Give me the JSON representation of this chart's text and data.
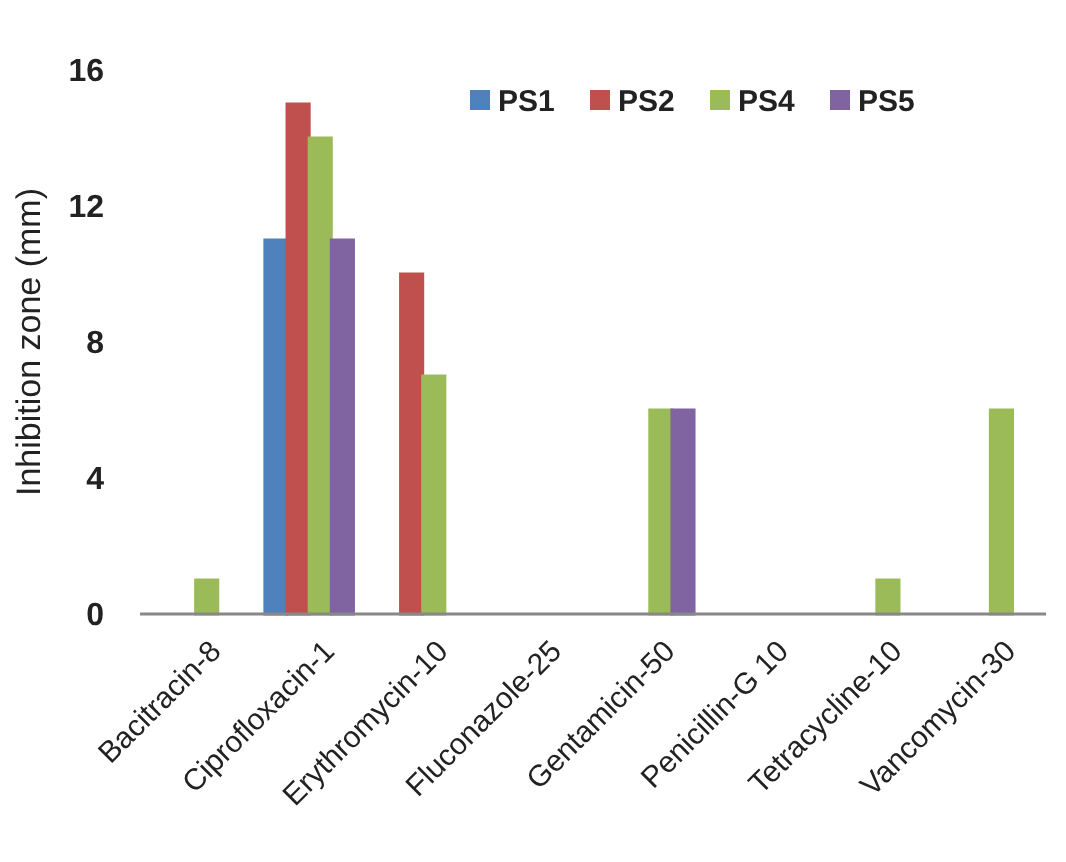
{
  "chart_data": {
    "type": "bar",
    "ylabel": "Inhibition zone (mm)",
    "categories": [
      "Bacitracin-8",
      "Ciprofloxacin-1",
      "Erythromycin-10",
      "Fluconazole-25",
      "Gentamicin-50",
      "Penicillin-G 10",
      "Tetracycline-10",
      "Vancomycin-30"
    ],
    "series": [
      {
        "name": "PS1",
        "color": "#4f81bd",
        "values": [
          0,
          11,
          0,
          0,
          0,
          0,
          0,
          0
        ]
      },
      {
        "name": "PS2",
        "color": "#c0504d",
        "values": [
          0,
          15,
          10,
          0,
          0,
          0,
          0,
          0
        ]
      },
      {
        "name": "PS4",
        "color": "#9bbb59",
        "values": [
          1,
          14,
          7,
          0,
          6,
          0,
          1,
          6
        ]
      },
      {
        "name": "PS5",
        "color": "#8064a2",
        "values": [
          0,
          11,
          0,
          0,
          6,
          0,
          0,
          0
        ]
      }
    ],
    "ylim": [
      0,
      16
    ],
    "yticks": [
      0,
      4,
      8,
      12,
      16
    ],
    "grid": false,
    "legend": "top right"
  }
}
